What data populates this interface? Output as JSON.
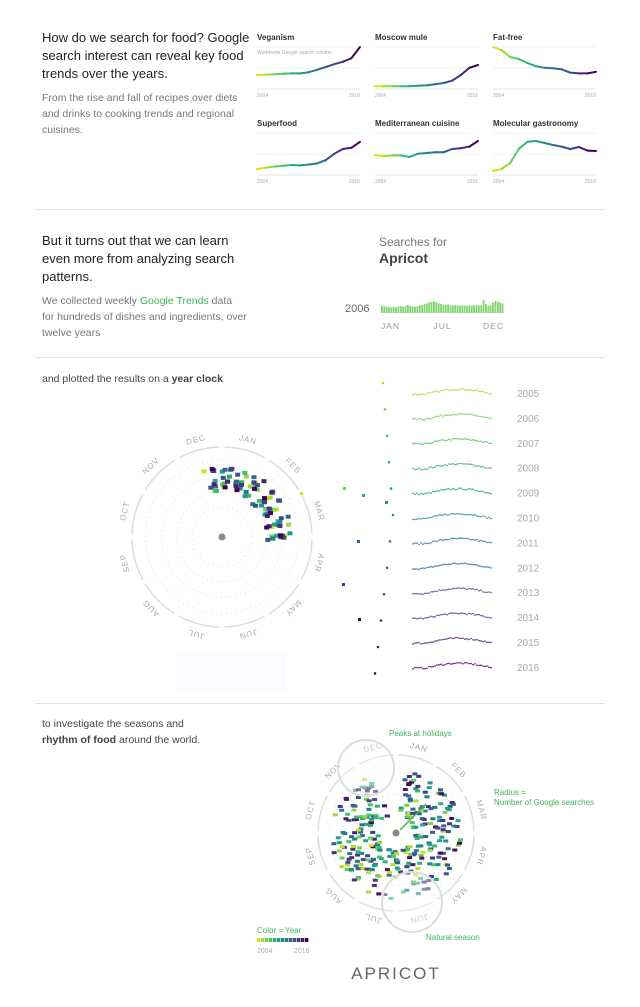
{
  "section1": {
    "heading": "How do we search for food? Google search interest can reveal key food trends over the years.",
    "body": "From the rise and fall of recipes over diets and drinks to cooking trends and regional cuisines."
  },
  "section2": {
    "heading": "But it turns out that we can learn even more from analyzing search patterns.",
    "body_pre": "We collected weekly ",
    "body_link": "Google Trends",
    "body_post": " data for hundreds of dishes and ingredients, over twelve years",
    "searches_for": "Searches for",
    "term": "Apricot"
  },
  "section3": {
    "text_pre": "and plotted the results on a ",
    "text_bold": "year clock"
  },
  "section4": {
    "text_line1": "to investigate the seasons and",
    "text_bold": "rhythm of food",
    "text_post": " around the world.",
    "annotation_holidays": "Peaks at holidays",
    "annotation_radius_1": "Radius =",
    "annotation_radius_2": "Number of Google searches",
    "annotation_season": "Natural season",
    "legend_title": "Color = Year",
    "legend_start": "2004",
    "legend_end": "2016",
    "title": "APRICOT"
  },
  "months": [
    "JAN",
    "FEB",
    "MAR",
    "APR",
    "MAY",
    "JUN",
    "JUL",
    "AUG",
    "SEP",
    "OCT",
    "NOV",
    "DEC"
  ],
  "colors": {
    "accent": "#3fb456",
    "viridis_start": "#d8e219",
    "viridis_end": "#440154"
  },
  "chart_data": [
    {
      "type": "line",
      "subtitle": "Worldwide Google search volume",
      "x": [
        2004,
        2005,
        2006,
        2007,
        2008,
        2009,
        2010,
        2011,
        2012,
        2013,
        2014,
        2015,
        2016
      ],
      "xtick_labels": [
        "2004",
        "2016"
      ],
      "series": [
        {
          "name": "Veganism",
          "values": [
            30,
            31,
            32,
            33,
            34,
            34,
            37,
            43,
            50,
            57,
            63,
            72,
            100
          ]
        },
        {
          "name": "Moscow mule",
          "values": [
            2,
            2,
            2,
            2,
            2,
            3,
            4,
            7,
            10,
            16,
            30,
            48,
            55
          ]
        },
        {
          "name": "Fat-free",
          "values": [
            100,
            92,
            75,
            70,
            60,
            52,
            48,
            47,
            44,
            36,
            34,
            34,
            38
          ]
        },
        {
          "name": "Superfood",
          "values": [
            10,
            13,
            16,
            18,
            20,
            19,
            21,
            24,
            32,
            48,
            60,
            63,
            78
          ]
        },
        {
          "name": "Mediterranean cuisine",
          "values": [
            45,
            42,
            44,
            44,
            40,
            48,
            50,
            52,
            52,
            60,
            62,
            66,
            80
          ]
        },
        {
          "name": "Molecular gastronomy",
          "values": [
            5,
            10,
            25,
            60,
            78,
            80,
            75,
            70,
            66,
            60,
            65,
            56,
            55
          ]
        }
      ]
    },
    {
      "type": "bar",
      "ylabel_left": "2006",
      "xtick_labels": [
        "JAN",
        "JUL",
        "DEC"
      ],
      "values": [
        45,
        42,
        40,
        38,
        36,
        38,
        36,
        40,
        42,
        40,
        44,
        50,
        44,
        40,
        40,
        42,
        48,
        50,
        56,
        60,
        66,
        70,
        72,
        68,
        60,
        56,
        52,
        50,
        54,
        48,
        46,
        50,
        48,
        46,
        48,
        46,
        44,
        48,
        46,
        48,
        50,
        46,
        48,
        80,
        56,
        44,
        50,
        66,
        74,
        70,
        64,
        60
      ]
    },
    {
      "type": "scatter",
      "years": [
        "2005",
        "2006",
        "2007",
        "2008",
        "2009",
        "2010",
        "2011",
        "2012",
        "2013",
        "2014",
        "2015",
        "2016"
      ]
    }
  ]
}
